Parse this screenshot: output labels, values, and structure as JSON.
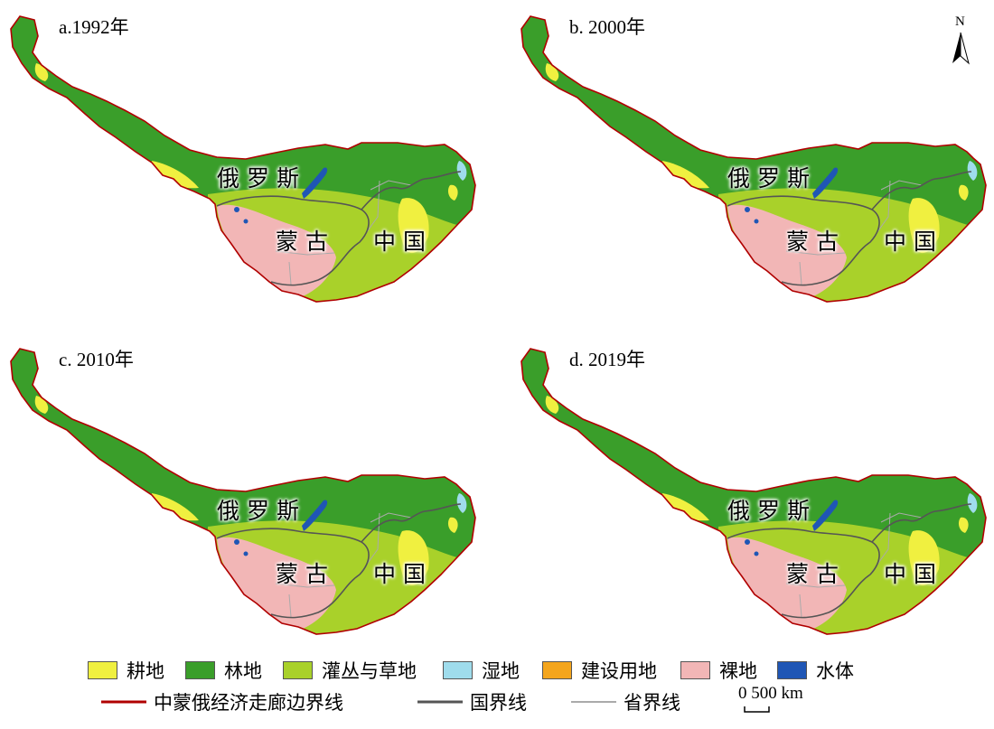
{
  "panels": [
    {
      "title": "a.1992年"
    },
    {
      "title": "b. 2000年"
    },
    {
      "title": "c. 2010年"
    },
    {
      "title": "d. 2019年"
    }
  ],
  "countries": {
    "russia": "俄罗斯",
    "mongolia": "蒙古",
    "china": "中国"
  },
  "north_arrow": "N",
  "legend": {
    "land_cover": [
      {
        "label": "耕地",
        "color": "#f0f040"
      },
      {
        "label": "林地",
        "color": "#3a9e2a"
      },
      {
        "label": "灌丛与草地",
        "color": "#a9d12a"
      },
      {
        "label": "湿地",
        "color": "#9fdcec"
      },
      {
        "label": "建设用地",
        "color": "#f4a51c"
      },
      {
        "label": "裸地",
        "color": "#f2b6b6"
      },
      {
        "label": "水体",
        "color": "#1f56b5"
      }
    ],
    "lines": [
      {
        "label": "中蒙俄经济走廊边界线",
        "color": "#b00000"
      },
      {
        "label": "国界线",
        "color": "#555555"
      },
      {
        "label": "省界线",
        "color": "#aaaaaa"
      }
    ]
  },
  "scale": {
    "zero": "0",
    "value": "500 km"
  }
}
